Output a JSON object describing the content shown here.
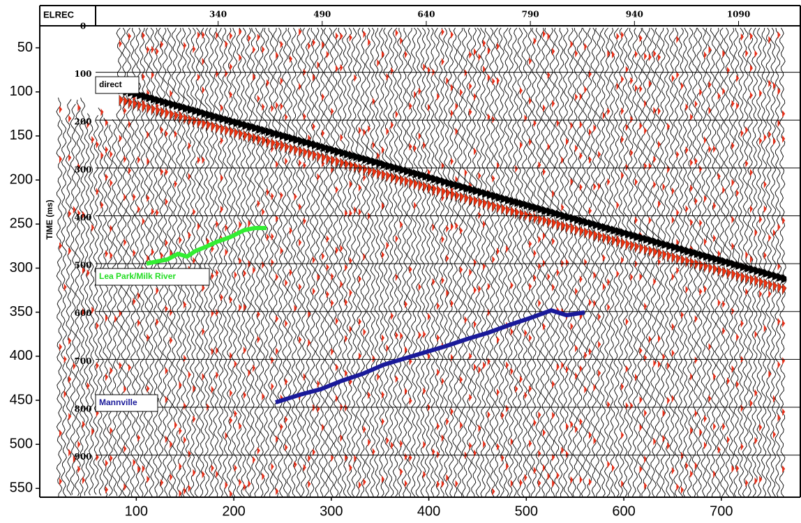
{
  "header": {
    "label": "ELREC"
  },
  "chart_data": {
    "type": "seismic",
    "ylabel": "TIME (ms)",
    "ylim": [
      25,
      560
    ],
    "yticks": [
      50,
      100,
      150,
      200,
      250,
      300,
      350,
      400,
      450,
      500,
      550
    ],
    "xlim": [
      1,
      781
    ],
    "xticks": [
      100,
      200,
      300,
      400,
      500,
      600,
      700
    ],
    "x2lim": [
      83,
      1179
    ],
    "x2ticks": [
      340,
      490,
      640,
      790,
      940,
      1090
    ],
    "y2lim": [
      3,
      988
    ],
    "y2ticks": [
      0,
      100,
      200,
      300,
      400,
      500,
      600,
      700,
      800,
      900
    ],
    "grid": true,
    "annotations": [
      {
        "text": "direct",
        "color": "#000000"
      },
      {
        "text": "Lea Park/Milk River",
        "color": "#22dd22"
      },
      {
        "text": "Mannville",
        "color": "#1a1a9a"
      }
    ]
  }
}
